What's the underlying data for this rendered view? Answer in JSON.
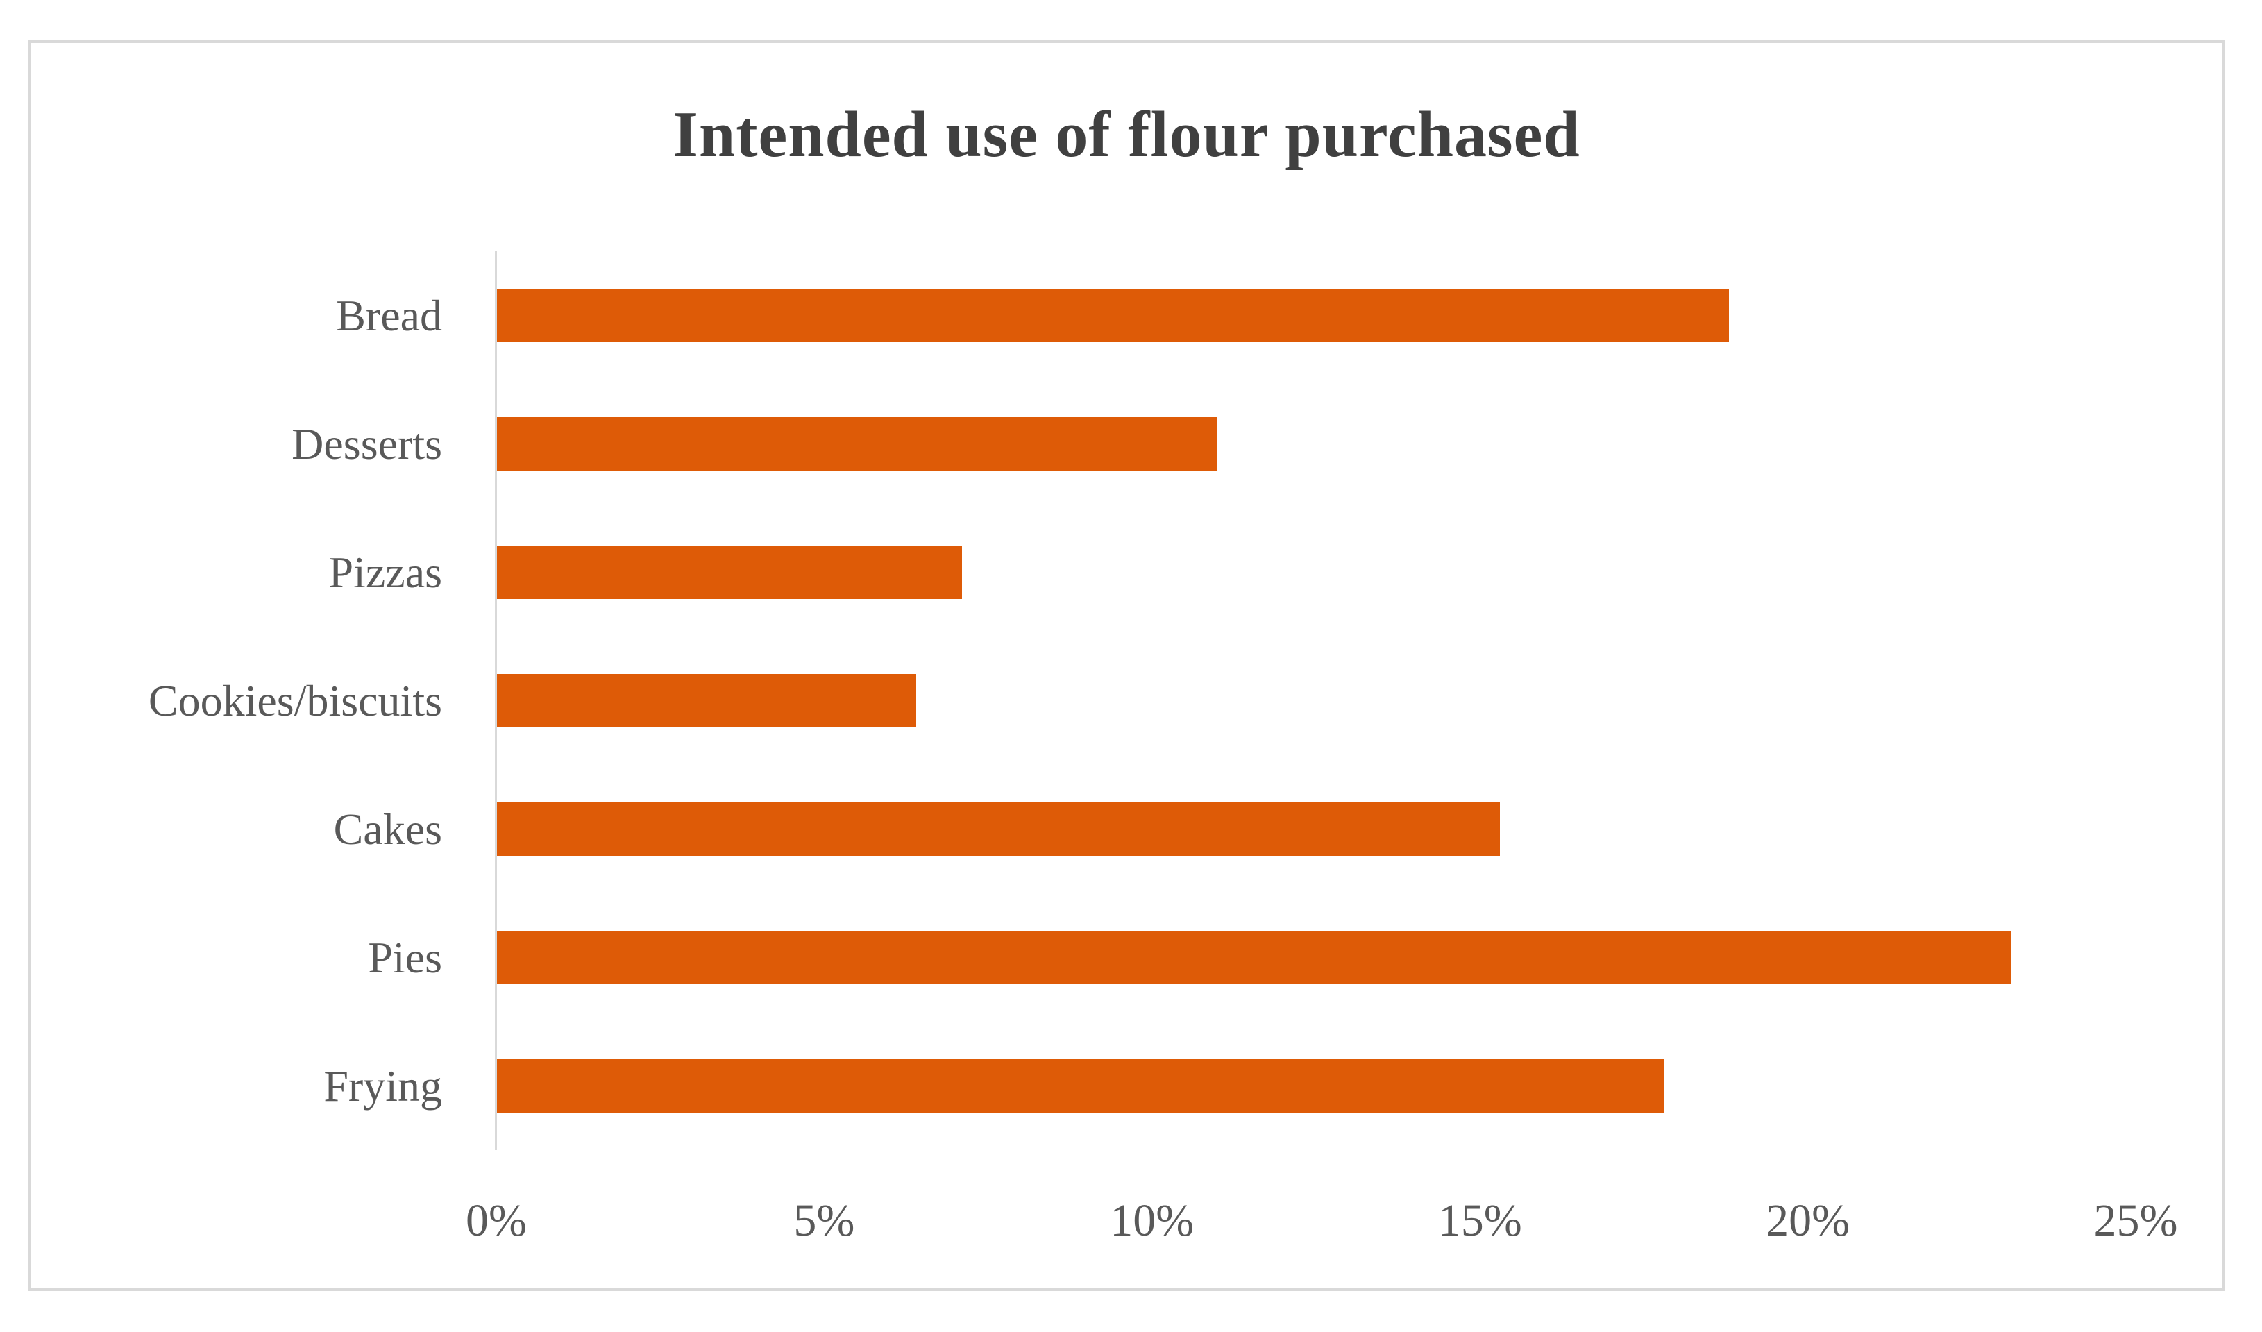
{
  "chart_data": {
    "type": "bar",
    "orientation": "horizontal",
    "title": "Intended use of flour purchased",
    "categories": [
      "Bread",
      "Desserts",
      "Pizzas",
      "Cookies/biscuits",
      "Cakes",
      "Pies",
      "Frying"
    ],
    "values": [
      18.8,
      11.0,
      7.1,
      6.4,
      15.3,
      23.1,
      17.8
    ],
    "value_unit": "%",
    "xlabel": "",
    "ylabel": "",
    "xlim": [
      0,
      25
    ],
    "x_tick_step": 5,
    "x_tick_labels": [
      "0%",
      "5%",
      "10%",
      "15%",
      "20%",
      "25%"
    ],
    "grid": false,
    "legend": false,
    "colors": {
      "bar": "#DE5B07",
      "axis_line": "#D9D9D9",
      "frame_border": "#D9D9D9",
      "title_text": "#404040",
      "label_text": "#595959",
      "background": "#FFFFFF"
    }
  }
}
